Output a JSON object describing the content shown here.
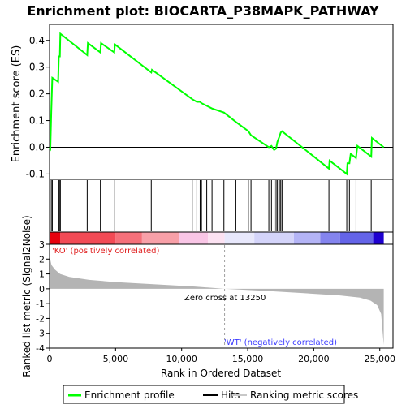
{
  "chart_data": {
    "type": "line",
    "title": "Enrichment plot: BIOCARTA_P38MAPK_PATHWAY",
    "xlabel": "Rank in Ordered Dataset",
    "top_panel": {
      "ylabel": "Enrichment score (ES)",
      "ylim": [
        -0.12,
        0.46
      ],
      "yticks": [
        -0.1,
        0.0,
        0.1,
        0.2,
        0.3,
        0.4
      ],
      "ytick_labels": [
        "-0.1",
        "0.0",
        "0.1",
        "0.2",
        "0.3",
        "0.4"
      ],
      "series": [
        {
          "name": "Enrichment profile",
          "color": "#00ff00",
          "points": [
            [
              0,
              0.0
            ],
            [
              60,
              -0.005
            ],
            [
              130,
              0.13
            ],
            [
              210,
              0.26
            ],
            [
              650,
              0.245
            ],
            [
              700,
              0.34
            ],
            [
              780,
              0.34
            ],
            [
              820,
              0.425
            ],
            [
              2850,
              0.345
            ],
            [
              2900,
              0.39
            ],
            [
              3850,
              0.355
            ],
            [
              3900,
              0.39
            ],
            [
              4900,
              0.355
            ],
            [
              4950,
              0.385
            ],
            [
              7700,
              0.28
            ],
            [
              7750,
              0.29
            ],
            [
              10800,
              0.18
            ],
            [
              11150,
              0.17
            ],
            [
              11400,
              0.17
            ],
            [
              11500,
              0.165
            ],
            [
              11900,
              0.155
            ],
            [
              12300,
              0.145
            ],
            [
              13200,
              0.13
            ],
            [
              14100,
              0.095
            ],
            [
              15050,
              0.06
            ],
            [
              15250,
              0.045
            ],
            [
              16600,
              0.0
            ],
            [
              16800,
              0.005
            ],
            [
              17000,
              -0.01
            ],
            [
              17150,
              -0.005
            ],
            [
              17250,
              0.02
            ],
            [
              17400,
              0.04
            ],
            [
              17500,
              0.055
            ],
            [
              17600,
              0.06
            ],
            [
              21150,
              -0.08
            ],
            [
              21200,
              -0.05
            ],
            [
              22500,
              -0.1
            ],
            [
              22550,
              -0.06
            ],
            [
              22700,
              -0.06
            ],
            [
              22800,
              -0.025
            ],
            [
              23200,
              -0.04
            ],
            [
              23300,
              0.005
            ],
            [
              24350,
              -0.035
            ],
            [
              24400,
              0.035
            ],
            [
              25300,
              0.0
            ]
          ]
        }
      ]
    },
    "hits": [
      130,
      210,
      650,
      700,
      780,
      820,
      2850,
      3850,
      4900,
      7700,
      10800,
      11150,
      11400,
      11500,
      11900,
      12300,
      13200,
      14100,
      15050,
      15250,
      16600,
      16800,
      17000,
      17150,
      17250,
      17400,
      17500,
      17600,
      21150,
      22500,
      22700,
      23200,
      24350
    ],
    "bottom_panel": {
      "ylabel": "Ranked list metric (Signal2Noise)",
      "ylim": [
        -4,
        3
      ],
      "yticks": [
        -4,
        -3,
        -2,
        -1,
        0,
        1,
        2,
        3
      ],
      "ytick_labels": [
        "-4",
        "-3",
        "-2",
        "-1",
        "0",
        "1",
        "2",
        "3"
      ],
      "metric_profile": [
        [
          0,
          3.0
        ],
        [
          50,
          2.0
        ],
        [
          150,
          1.6
        ],
        [
          400,
          1.3
        ],
        [
          800,
          1.0
        ],
        [
          1500,
          0.8
        ],
        [
          3000,
          0.6
        ],
        [
          5000,
          0.45
        ],
        [
          8000,
          0.3
        ],
        [
          11000,
          0.15
        ],
        [
          13250,
          0.0
        ],
        [
          16000,
          -0.12
        ],
        [
          19000,
          -0.28
        ],
        [
          22000,
          -0.45
        ],
        [
          23500,
          -0.6
        ],
        [
          24300,
          -0.8
        ],
        [
          24800,
          -1.1
        ],
        [
          25100,
          -1.7
        ],
        [
          25300,
          -3.8
        ]
      ],
      "fill_color": "#b4b4b4",
      "zero_cross_label": "Zero cross at 13250",
      "zero_cross_at": 13250,
      "positive_label": "'KO' (positively correlated)",
      "negative_label": "'WT' (negatively correlated)"
    },
    "xlim": [
      0,
      26000
    ],
    "xticks": [
      0,
      5000,
      10000,
      15000,
      20000,
      25000
    ],
    "xtick_labels": [
      "0",
      "5,000",
      "10,000",
      "15,000",
      "20,000",
      "25,000"
    ],
    "n_genes": 25300,
    "heatmap_segments": [
      {
        "from": 0,
        "to": 800,
        "color": "#e8000d"
      },
      {
        "from": 800,
        "to": 5000,
        "color": "#f24a55"
      },
      {
        "from": 5000,
        "to": 7000,
        "color": "#f5707a"
      },
      {
        "from": 7000,
        "to": 9800,
        "color": "#f8a0a8"
      },
      {
        "from": 9800,
        "to": 12000,
        "color": "#f9c6e6"
      },
      {
        "from": 12000,
        "to": 13250,
        "color": "#fce2f2"
      },
      {
        "from": 13250,
        "to": 15500,
        "color": "#e8e8fc"
      },
      {
        "from": 15500,
        "to": 18500,
        "color": "#d4d4fa"
      },
      {
        "from": 18500,
        "to": 20500,
        "color": "#b4b4f6"
      },
      {
        "from": 20500,
        "to": 22000,
        "color": "#8484ee"
      },
      {
        "from": 22000,
        "to": 24500,
        "color": "#6464e8"
      },
      {
        "from": 24500,
        "to": 25300,
        "color": "#1e00d0"
      }
    ],
    "legend": {
      "placement": "bottom",
      "items": [
        {
          "label": "Enrichment profile",
          "color": "#00ff00",
          "kind": "line"
        },
        {
          "label": "Hits",
          "color": "#000000",
          "kind": "line"
        },
        {
          "label": "Ranking metric scores",
          "color": "#c8c8c8",
          "kind": "line"
        }
      ]
    },
    "colors": {
      "ko_label": "#e02020",
      "wt_label": "#3a3aff",
      "zero_line": "#a0a0a0"
    }
  }
}
